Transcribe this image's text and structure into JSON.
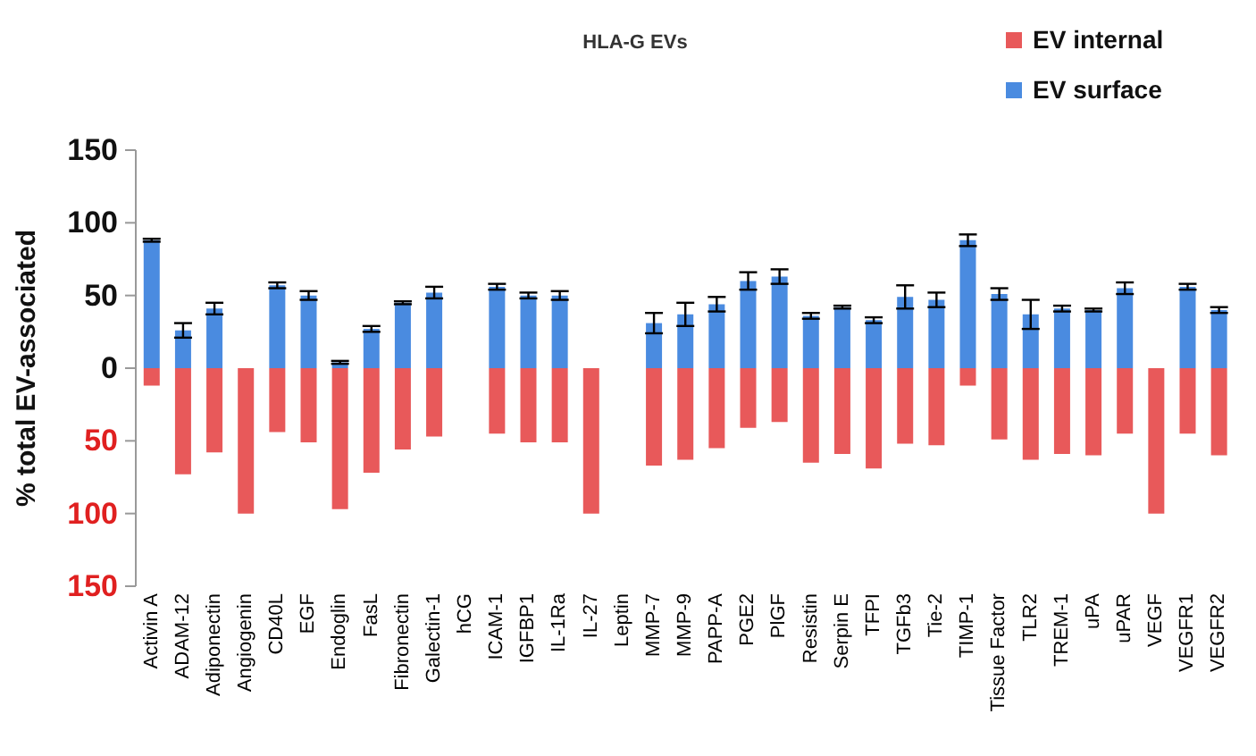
{
  "chart_data": {
    "type": "bar",
    "title": "HLA-G EVs",
    "ylabel": "% total EV-associated",
    "stacked": true,
    "legend": "top right",
    "categories": [
      "Activin A",
      "ADAM-12",
      "Adiponectin",
      "Angiogenin",
      "CD40L",
      "EGF",
      "Endoglin",
      "FasL",
      "Fibronectin",
      "Galectin-1",
      "hCG",
      "ICAM-1",
      "IGFBP1",
      "IL-1Ra",
      "IL-27",
      "Leptin",
      "MMP-7",
      "MMP-9",
      "PAPP-A",
      "PGE2",
      "PlGF",
      "Resistin",
      "Serpin E",
      "TFPI",
      "TGFb3",
      "Tie-2",
      "TIMP-1",
      "Tissue Factor",
      "TLR2",
      "TREM-1",
      "uPA",
      "uPAR",
      "VEGF",
      "VEGFR1",
      "VEGFR2"
    ],
    "ylim": [
      -150,
      150
    ],
    "yticks": [
      {
        "value": -150,
        "label": "150"
      },
      {
        "value": -100,
        "label": "100"
      },
      {
        "value": -50,
        "label": "50"
      },
      0,
      50,
      100,
      150
    ],
    "series": [
      {
        "name": "EV internal",
        "color": "#e8595a",
        "values": [
          -12,
          -73,
          -58,
          -100,
          -44,
          -51,
          -97,
          -72,
          -56,
          -47,
          0,
          -45,
          -51,
          -51,
          -100,
          0,
          -67,
          -63,
          -55,
          -41,
          -37,
          -65,
          -59,
          -69,
          -52,
          -53,
          -12,
          -49,
          -63,
          -59,
          -60,
          -45,
          -100,
          -45,
          -60
        ]
      },
      {
        "name": "EV surface",
        "color": "#4a8be0",
        "values": [
          88,
          26,
          41,
          0,
          57,
          50,
          4,
          27,
          45,
          52,
          0,
          56,
          50,
          50,
          0,
          0,
          31,
          37,
          44,
          60,
          63,
          36,
          42,
          33,
          49,
          47,
          88,
          51,
          37,
          41,
          40,
          55,
          0,
          56,
          40
        ],
        "errors": [
          1,
          5,
          4,
          null,
          2,
          3,
          1,
          2,
          1,
          4,
          null,
          2,
          2,
          3,
          null,
          null,
          7,
          8,
          5,
          6,
          5,
          2,
          1,
          2,
          8,
          5,
          4,
          4,
          10,
          2,
          1,
          4,
          null,
          2,
          2
        ]
      }
    ]
  }
}
